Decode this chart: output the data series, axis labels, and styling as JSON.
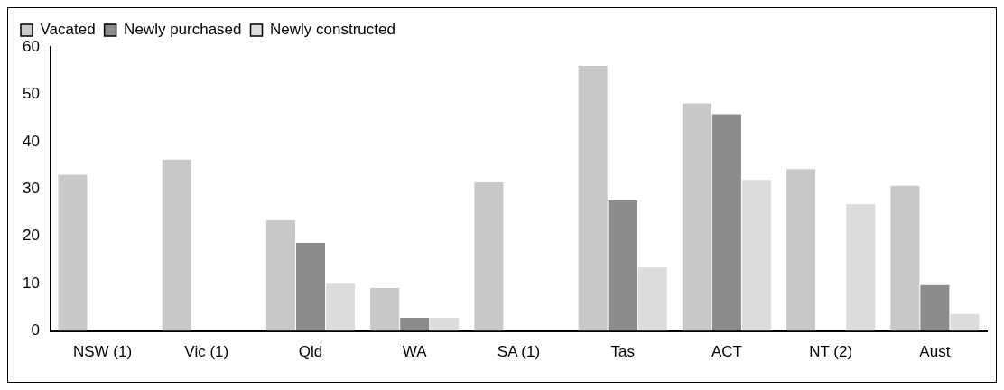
{
  "chart_data": {
    "type": "bar",
    "categories": [
      "NSW (1)",
      "Vic (1)",
      "Qld",
      "WA",
      "SA (1)",
      "Tas",
      "ACT",
      "NT (2)",
      "Aust"
    ],
    "series": [
      {
        "name": "Vacated",
        "color": "#c8c8c8",
        "values": [
          33,
          36.2,
          23.4,
          9.1,
          31.4,
          56,
          48.1,
          34.2,
          30.7
        ]
      },
      {
        "name": "Newly purchased",
        "color": "#8c8c8c",
        "values": [
          null,
          null,
          18.6,
          2.8,
          null,
          27.6,
          45.8,
          null,
          9.7
        ]
      },
      {
        "name": "Newly constructed",
        "color": "#dcdcdc",
        "values": [
          null,
          null,
          10,
          2.8,
          null,
          13.4,
          31.9,
          26.8,
          3.6
        ]
      }
    ],
    "ylim": [
      0,
      60
    ],
    "yticks": [
      0,
      10,
      20,
      30,
      40,
      50,
      60
    ],
    "grid": false,
    "legend": "top left"
  }
}
